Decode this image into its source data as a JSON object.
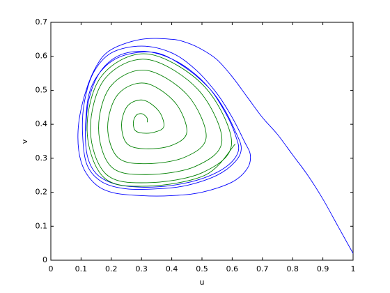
{
  "chart_data": {
    "type": "line",
    "xlabel": "u",
    "ylabel": "v",
    "xlim": [
      0,
      1
    ],
    "ylim": [
      0,
      0.7
    ],
    "xticks": [
      0,
      0.1,
      0.2,
      0.3,
      0.4,
      0.5,
      0.6,
      0.7,
      0.8,
      0.9,
      1
    ],
    "yticks": [
      0,
      0.1,
      0.2,
      0.3,
      0.4,
      0.5,
      0.6,
      0.7
    ],
    "grid": false,
    "series": [
      {
        "color": "#0000ff",
        "x": [
          1,
          0.95,
          0.9,
          0.85,
          0.8,
          0.75,
          0.7,
          0.65,
          0.6,
          0.55,
          0.5,
          0.45,
          0.4,
          0.3,
          0.2,
          0.15,
          0.11,
          0.09,
          0.1,
          0.14,
          0.2,
          0.3,
          0.4,
          0.5,
          0.6,
          0.65,
          0.66,
          0.64,
          0.6,
          0.55,
          0.48,
          0.4,
          0.3,
          0.2,
          0.14,
          0.11,
          0.105,
          0.12,
          0.17,
          0.25,
          0.35,
          0.45,
          0.55,
          0.61,
          0.63,
          0.61,
          0.57,
          0.52,
          0.44,
          0.35,
          0.25,
          0.18,
          0.13,
          0.115,
          0.12,
          0.15,
          0.21,
          0.3,
          0.4,
          0.5,
          0.58,
          0.62,
          0.61,
          0.58,
          0.53,
          0.46,
          0.38,
          0.3,
          0.22,
          0.16,
          0.125,
          0.115
        ],
        "values": [
          0.02,
          0.1,
          0.18,
          0.25,
          0.31,
          0.37,
          0.42,
          0.48,
          0.54,
          0.59,
          0.62,
          0.64,
          0.65,
          0.65,
          0.62,
          0.57,
          0.48,
          0.38,
          0.29,
          0.23,
          0.2,
          0.19,
          0.19,
          0.2,
          0.23,
          0.27,
          0.31,
          0.35,
          0.42,
          0.49,
          0.56,
          0.61,
          0.63,
          0.61,
          0.55,
          0.46,
          0.37,
          0.28,
          0.23,
          0.21,
          0.21,
          0.22,
          0.25,
          0.29,
          0.33,
          0.38,
          0.45,
          0.51,
          0.57,
          0.61,
          0.605,
          0.57,
          0.5,
          0.4,
          0.31,
          0.255,
          0.225,
          0.215,
          0.22,
          0.24,
          0.275,
          0.32,
          0.37,
          0.43,
          0.5,
          0.56,
          0.6,
          0.615,
          0.6,
          0.55,
          0.47,
          0.38
        ]
      },
      {
        "color": "#008000",
        "x": [
          0.319,
          0.318,
          0.302,
          0.283,
          0.273,
          0.279,
          0.304,
          0.344,
          0.374,
          0.357,
          0.306,
          0.255,
          0.234,
          0.251,
          0.308,
          0.397,
          0.45,
          0.41,
          0.311,
          0.222,
          0.188,
          0.221,
          0.313,
          0.443,
          0.514,
          0.452,
          0.314,
          0.198,
          0.158,
          0.2,
          0.316,
          0.478,
          0.566,
          0.486,
          0.317,
          0.178,
          0.131,
          0.183,
          0.318,
          0.502,
          0.598,
          0.506,
          0.319,
          0.168,
          0.12,
          0.176,
          0.319,
          0.512,
          0.61
        ],
        "values": [
          0.406,
          0.419,
          0.431,
          0.427,
          0.406,
          0.382,
          0.374,
          0.377,
          0.394,
          0.439,
          0.471,
          0.455,
          0.4,
          0.344,
          0.328,
          0.337,
          0.377,
          0.465,
          0.521,
          0.488,
          0.392,
          0.303,
          0.284,
          0.303,
          0.363,
          0.486,
          0.559,
          0.512,
          0.388,
          0.275,
          0.252,
          0.276,
          0.352,
          0.503,
          0.591,
          0.533,
          0.383,
          0.253,
          0.228,
          0.258,
          0.345,
          0.513,
          0.607,
          0.542,
          0.382,
          0.243,
          0.218,
          0.251,
          0.342
        ]
      }
    ]
  }
}
